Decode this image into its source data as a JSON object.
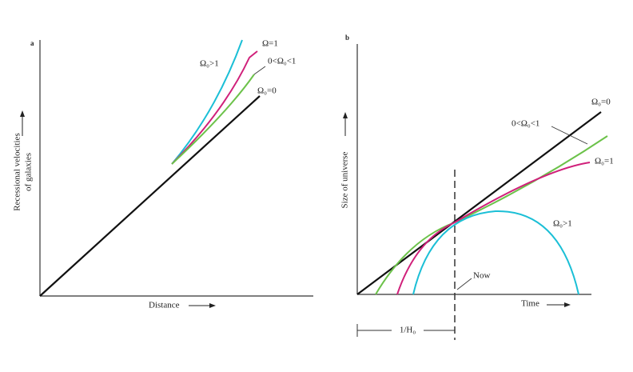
{
  "panels": [
    {
      "label": "a",
      "y_axis_label": [
        "Recessional velocities",
        "of galaxies"
      ],
      "x_axis_label": "Distance",
      "curves": [
        "Ω₀>1",
        "Ω=1",
        "0<Ω₀<1",
        "Ω₀=0"
      ]
    },
    {
      "label": "b",
      "y_axis_label": "Size of universe",
      "x_axis_label": "Time",
      "now_label": "Now",
      "interval_label": "1/H₀",
      "curves": [
        "Ω₀=0",
        "0<Ω₀<1",
        "Ω₀=1",
        "Ω₀>1"
      ]
    }
  ]
}
